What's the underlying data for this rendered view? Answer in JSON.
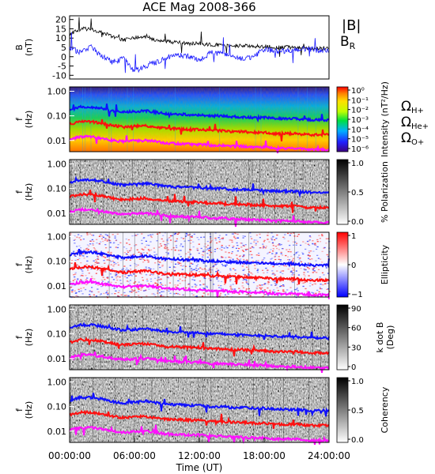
{
  "title": "ACE Mag 2008-366",
  "xaxis": {
    "label": "Time (UT)",
    "ticks": [
      "00:00:00",
      "06:00:00",
      "12:00:00",
      "18:00:00",
      "24:00:00"
    ],
    "range_hours": [
      0,
      24
    ]
  },
  "colors": {
    "B_total": "#000000",
    "B_R": "#1a1aff",
    "H_plus": "#1010ff",
    "He_plus": "#ff1010",
    "O_plus": "#ff10ff"
  },
  "legend_top": {
    "B_total": "|B|",
    "B_R_main": "B",
    "B_R_sub": "R"
  },
  "legend_gyro": [
    {
      "main": "Ω",
      "sub": "H+",
      "color": "#1010ff"
    },
    {
      "main": "Ω",
      "sub": "He+",
      "color": "#ff1010"
    },
    {
      "main": "Ω",
      "sub": "O+",
      "color": "#ff10ff"
    }
  ],
  "chart_data": [
    {
      "type": "line",
      "panel": "magnetic-field",
      "ylabel_main": "B",
      "ylabel_unit": "(nT)",
      "ylim": [
        -12,
        22
      ],
      "yticks": [
        "20",
        "15",
        "10",
        "5",
        "0",
        "-5",
        "-10"
      ],
      "series": [
        {
          "name": "|B|",
          "x_hours": [
            0,
            1,
            2,
            3,
            4,
            5,
            6,
            7,
            8,
            9,
            10,
            11,
            12,
            13,
            14,
            15,
            16,
            17,
            18,
            19,
            20,
            21,
            22,
            23,
            24
          ],
          "values": [
            12,
            15,
            15,
            13,
            11,
            9,
            10,
            11,
            9,
            8,
            8,
            7,
            7,
            6.5,
            6.5,
            6,
            6,
            5.5,
            5.5,
            5,
            5,
            5,
            4.5,
            4.5,
            4.5
          ]
        },
        {
          "name": "B",
          "x_hours": [
            0,
            1,
            2,
            3,
            4,
            5,
            6,
            7,
            8,
            9,
            10,
            11,
            12,
            13,
            14,
            15,
            16,
            17,
            18,
            19,
            20,
            21,
            22,
            23,
            24
          ],
          "values": [
            5,
            2,
            5,
            0,
            -3,
            -1,
            -8,
            -5,
            -3,
            0,
            1,
            0,
            -2,
            2,
            2,
            1,
            -1,
            0,
            4,
            3,
            3,
            4,
            4,
            3.5,
            3.5
          ]
        }
      ]
    },
    {
      "type": "heatmap",
      "panel": "intensity",
      "ylabel_main": "f",
      "ylabel_unit": "(Hz)",
      "yticks": [
        "1.00",
        "0.10",
        "0.01"
      ],
      "colorbar_label": "Intensity (nT²/Hz)",
      "colorbar_ticks": [
        "10⁰",
        "10⁻¹",
        "10⁻²",
        "10⁻³",
        "10⁻⁴",
        "10⁻⁵",
        "10⁻⁶"
      ]
    },
    {
      "type": "heatmap",
      "panel": "polarization",
      "ylabel_main": "f",
      "ylabel_unit": "(Hz)",
      "yticks": [
        "1.00",
        "0.10",
        "0.01"
      ],
      "colorbar_label": "% Polarization",
      "colorbar_ticks": [
        "1.0",
        "0.5",
        "0.0"
      ]
    },
    {
      "type": "heatmap",
      "panel": "ellipticity",
      "ylabel_main": "f",
      "ylabel_unit": "(Hz)",
      "yticks": [
        "1.00",
        "0.10",
        "0.01"
      ],
      "colorbar_label": "Ellipticity",
      "colorbar_ticks": [
        "1",
        "0",
        "−1"
      ]
    },
    {
      "type": "heatmap",
      "panel": "k-dot-b",
      "ylabel_main": "f",
      "ylabel_unit": "(Hz)",
      "yticks": [
        "1.00",
        "0.10",
        "0.01"
      ],
      "colorbar_label": "k dot B",
      "colorbar_label2": "(Deg)",
      "colorbar_ticks": [
        "90",
        "60",
        "30",
        "0"
      ]
    },
    {
      "type": "heatmap",
      "panel": "coherency",
      "ylabel_main": "f",
      "ylabel_unit": "(Hz)",
      "yticks": [
        "1.00",
        "0.10",
        "0.01"
      ],
      "colorbar_label": "Coherency",
      "colorbar_ticks": [
        "1.0",
        "0.5",
        "0.0"
      ]
    }
  ],
  "gyrofrequency_curves": {
    "x_hours": [
      0,
      1,
      2,
      3,
      4,
      5,
      6,
      7,
      8,
      9,
      10,
      11,
      12,
      13,
      14,
      15,
      16,
      17,
      18,
      19,
      20,
      21,
      22,
      23,
      24
    ],
    "H_plus_hz": [
      0.18,
      0.23,
      0.23,
      0.2,
      0.16,
      0.14,
      0.15,
      0.16,
      0.14,
      0.12,
      0.12,
      0.11,
      0.11,
      0.1,
      0.1,
      0.09,
      0.09,
      0.085,
      0.085,
      0.078,
      0.078,
      0.075,
      0.07,
      0.068,
      0.068
    ],
    "He_plus_hz": [
      0.045,
      0.058,
      0.058,
      0.05,
      0.04,
      0.035,
      0.038,
      0.04,
      0.035,
      0.03,
      0.03,
      0.028,
      0.028,
      0.025,
      0.025,
      0.023,
      0.023,
      0.021,
      0.021,
      0.019,
      0.019,
      0.019,
      0.017,
      0.017,
      0.017
    ],
    "O_plus_hz": [
      0.011,
      0.014,
      0.014,
      0.012,
      0.01,
      0.009,
      0.0095,
      0.01,
      0.009,
      0.0075,
      0.0075,
      0.007,
      0.007,
      0.0063,
      0.0063,
      0.0058,
      0.0058,
      0.0053,
      0.0053,
      0.0048,
      0.0048,
      0.0047,
      0.0043,
      0.0042,
      0.0042
    ]
  }
}
